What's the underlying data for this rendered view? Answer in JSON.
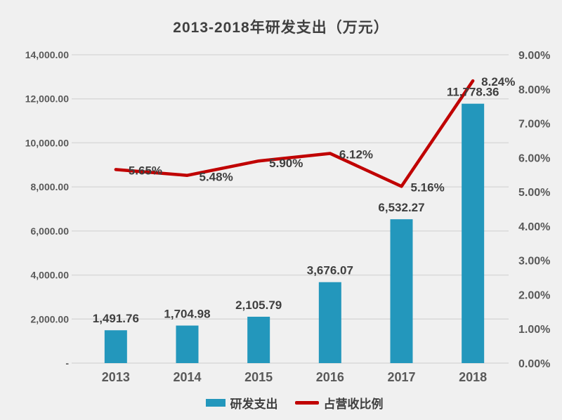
{
  "title": "2013-2018年研发支出（万元）",
  "colors": {
    "background": "#f0f0f0",
    "bar": "#2397bc",
    "line": "#c00000",
    "gridline": "#d9d9d9",
    "axis_text": "#595959",
    "label_text": "#3f3f3f"
  },
  "chart_data": {
    "type": "combo bar+line, dual axis",
    "title": "2013-2018年研发支出（万元）",
    "categories": [
      "2013",
      "2014",
      "2015",
      "2016",
      "2017",
      "2018"
    ],
    "series": [
      {
        "name": "研发支出",
        "type": "bar",
        "axis": "left",
        "values": [
          1491.76,
          1704.98,
          2105.79,
          3676.07,
          6532.27,
          11778.36
        ],
        "labels": [
          "1,491.76",
          "1,704.98",
          "2,105.79",
          "3,676.07",
          "6,532.27",
          "11,778.36"
        ]
      },
      {
        "name": "占营收比例",
        "type": "line",
        "axis": "right",
        "values": [
          5.65,
          5.48,
          5.9,
          6.12,
          5.16,
          8.24
        ],
        "labels": [
          "5.65%",
          "5.48%",
          "5.90%",
          "6.12%",
          "5.16%",
          "8.24%"
        ],
        "label_offsets": [
          [
            18,
            7
          ],
          [
            17,
            8
          ],
          [
            15,
            9
          ],
          [
            13,
            7
          ],
          [
            13,
            7
          ],
          [
            12,
            7
          ]
        ]
      }
    ],
    "left_axis": {
      "min": 0,
      "max": 14000,
      "ticks": [
        {
          "value": 14000,
          "label": "14,000.00"
        },
        {
          "value": 12000,
          "label": "12,000.00"
        },
        {
          "value": 10000,
          "label": "10,000.00"
        },
        {
          "value": 8000,
          "label": "8,000.00"
        },
        {
          "value": 6000,
          "label": "6,000.00"
        },
        {
          "value": 4000,
          "label": "4,000.00"
        },
        {
          "value": 2000,
          "label": "2,000.00"
        },
        {
          "value": 0,
          "label": "-"
        }
      ]
    },
    "right_axis": {
      "min": 0,
      "max": 9,
      "ticks": [
        {
          "value": 9,
          "label": "9.00%"
        },
        {
          "value": 8,
          "label": "8.00%"
        },
        {
          "value": 7,
          "label": "7.00%"
        },
        {
          "value": 6,
          "label": "6.00%"
        },
        {
          "value": 5,
          "label": "5.00%"
        },
        {
          "value": 4,
          "label": "4.00%"
        },
        {
          "value": 3,
          "label": "3.00%"
        },
        {
          "value": 2,
          "label": "2.00%"
        },
        {
          "value": 1,
          "label": "1.00%"
        },
        {
          "value": 0,
          "label": "0.00%"
        }
      ]
    },
    "grid": true,
    "legend_position": "bottom"
  },
  "legend": {
    "items": [
      {
        "label": "研发支出"
      },
      {
        "label": "占营收比例"
      }
    ]
  }
}
